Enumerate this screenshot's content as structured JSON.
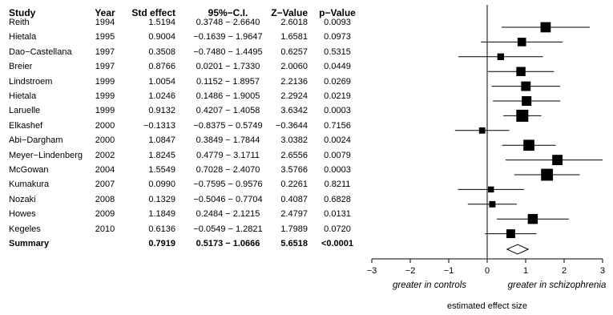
{
  "headers": {
    "study": "Study",
    "year": "Year",
    "std": "Std effect",
    "ci": "95%−C.I.",
    "z": "Z−Value",
    "p": "p−Value"
  },
  "rows": [
    {
      "study": "Reith",
      "year": "1994",
      "std": "1.5194",
      "ci": "0.3748 − 2.6640",
      "z": "2.6018",
      "p": "0.0093"
    },
    {
      "study": "Hietala",
      "year": "1995",
      "std": "0.9004",
      "ci": "−0.1639 − 1.9647",
      "z": "1.6581",
      "p": "0.0973"
    },
    {
      "study": "Dao−Castellana",
      "year": "1997",
      "std": "0.3508",
      "ci": "−0.7480 − 1.4495",
      "z": "0.6257",
      "p": "0.5315"
    },
    {
      "study": "Breier",
      "year": "1997",
      "std": "0.8766",
      "ci": "0.0201 − 1.7330",
      "z": "2.0060",
      "p": "0.0449"
    },
    {
      "study": "Lindstroem",
      "year": "1999",
      "std": "1.0054",
      "ci": "0.1152 − 1.8957",
      "z": "2.2136",
      "p": "0.0269"
    },
    {
      "study": "Hietala",
      "year": "1999",
      "std": "1.0246",
      "ci": "0.1486 − 1.9005",
      "z": "2.2924",
      "p": "0.0219"
    },
    {
      "study": "Laruelle",
      "year": "1999",
      "std": "0.9132",
      "ci": "0.4207 − 1.4058",
      "z": "3.6342",
      "p": "0.0003"
    },
    {
      "study": "Elkashef",
      "year": "2000",
      "std": "−0.1313",
      "ci": "−0.8375 − 0.5749",
      "z": "−0.3644",
      "p": "0.7156"
    },
    {
      "study": "Abi−Dargham",
      "year": "2000",
      "std": "1.0847",
      "ci": "0.3849 − 1.7844",
      "z": "3.0382",
      "p": "0.0024"
    },
    {
      "study": "Meyer−Lindenberg",
      "year": "2002",
      "std": "1.8245",
      "ci": "0.4779 − 3.1711",
      "z": "2.6556",
      "p": "0.0079"
    },
    {
      "study": "McGowan",
      "year": "2004",
      "std": "1.5549",
      "ci": "0.7028 − 2.4070",
      "z": "3.5766",
      "p": "0.0003"
    },
    {
      "study": "Kumakura",
      "year": "2007",
      "std": "0.0990",
      "ci": "−0.7595 − 0.9576",
      "z": "0.2261",
      "p": "0.8211"
    },
    {
      "study": "Nozaki",
      "year": "2008",
      "std": "0.1329",
      "ci": "−0.5046 − 0.7704",
      "z": "0.4087",
      "p": "0.6828"
    },
    {
      "study": "Howes",
      "year": "2009",
      "std": "1.1849",
      "ci": "0.2484 − 2.1215",
      "z": "2.4797",
      "p": "0.0131"
    },
    {
      "study": "Kegeles",
      "year": "2010",
      "std": "0.6136",
      "ci": "−0.0549 − 1.2821",
      "z": "1.7989",
      "p": "0.0720"
    }
  ],
  "summary": {
    "study": "Summary",
    "year": "",
    "std": "0.7919",
    "ci": "0.5173 − 1.0666",
    "z": "5.6518",
    "p": "<0.0001"
  },
  "chart_data": {
    "type": "scatter",
    "subtype": "forest-plot",
    "title": "",
    "xlabel": "estimated effect size",
    "xlim": [
      -3,
      3
    ],
    "x_ticks": [
      "−3",
      "−2",
      "−1",
      "0",
      "1",
      "2",
      "3"
    ],
    "reference_line_x": 0,
    "axis_annotations": {
      "left": "greater in controls",
      "right": "greater in schizophrenia"
    },
    "grid": false,
    "points": [
      {
        "label": "Reith",
        "est": 1.5194,
        "lo": 0.3748,
        "hi": 2.664,
        "z": 2.6018
      },
      {
        "label": "Hietala",
        "est": 0.9004,
        "lo": -0.1639,
        "hi": 1.9647,
        "z": 1.6581
      },
      {
        "label": "Dao−Castellana",
        "est": 0.3508,
        "lo": -0.748,
        "hi": 1.4495,
        "z": 0.6257
      },
      {
        "label": "Breier",
        "est": 0.8766,
        "lo": 0.0201,
        "hi": 1.733,
        "z": 2.006
      },
      {
        "label": "Lindstroem",
        "est": 1.0054,
        "lo": 0.1152,
        "hi": 1.8957,
        "z": 2.2136
      },
      {
        "label": "Hietala",
        "est": 1.0246,
        "lo": 0.1486,
        "hi": 1.9005,
        "z": 2.2924
      },
      {
        "label": "Laruelle",
        "est": 0.9132,
        "lo": 0.4207,
        "hi": 1.4058,
        "z": 3.6342
      },
      {
        "label": "Elkashef",
        "est": -0.1313,
        "lo": -0.8375,
        "hi": 0.5749,
        "z": -0.3644
      },
      {
        "label": "Abi−Dargham",
        "est": 1.0847,
        "lo": 0.3849,
        "hi": 1.7844,
        "z": 3.0382
      },
      {
        "label": "Meyer−Lindenberg",
        "est": 1.8245,
        "lo": 0.4779,
        "hi": 3.1711,
        "z": 2.6556
      },
      {
        "label": "McGowan",
        "est": 1.5549,
        "lo": 0.7028,
        "hi": 2.407,
        "z": 3.5766
      },
      {
        "label": "Kumakura",
        "est": 0.099,
        "lo": -0.7595,
        "hi": 0.9576,
        "z": 0.2261
      },
      {
        "label": "Nozaki",
        "est": 0.1329,
        "lo": -0.5046,
        "hi": 0.7704,
        "z": 0.4087
      },
      {
        "label": "Howes",
        "est": 1.1849,
        "lo": 0.2484,
        "hi": 2.1215,
        "z": 2.4797
      },
      {
        "label": "Kegeles",
        "est": 0.6136,
        "lo": -0.0549,
        "hi": 1.2821,
        "z": 1.7989
      }
    ],
    "summary": {
      "label": "Summary",
      "est": 0.7919,
      "lo": 0.5173,
      "hi": 1.0666,
      "marker": "diamond"
    }
  }
}
